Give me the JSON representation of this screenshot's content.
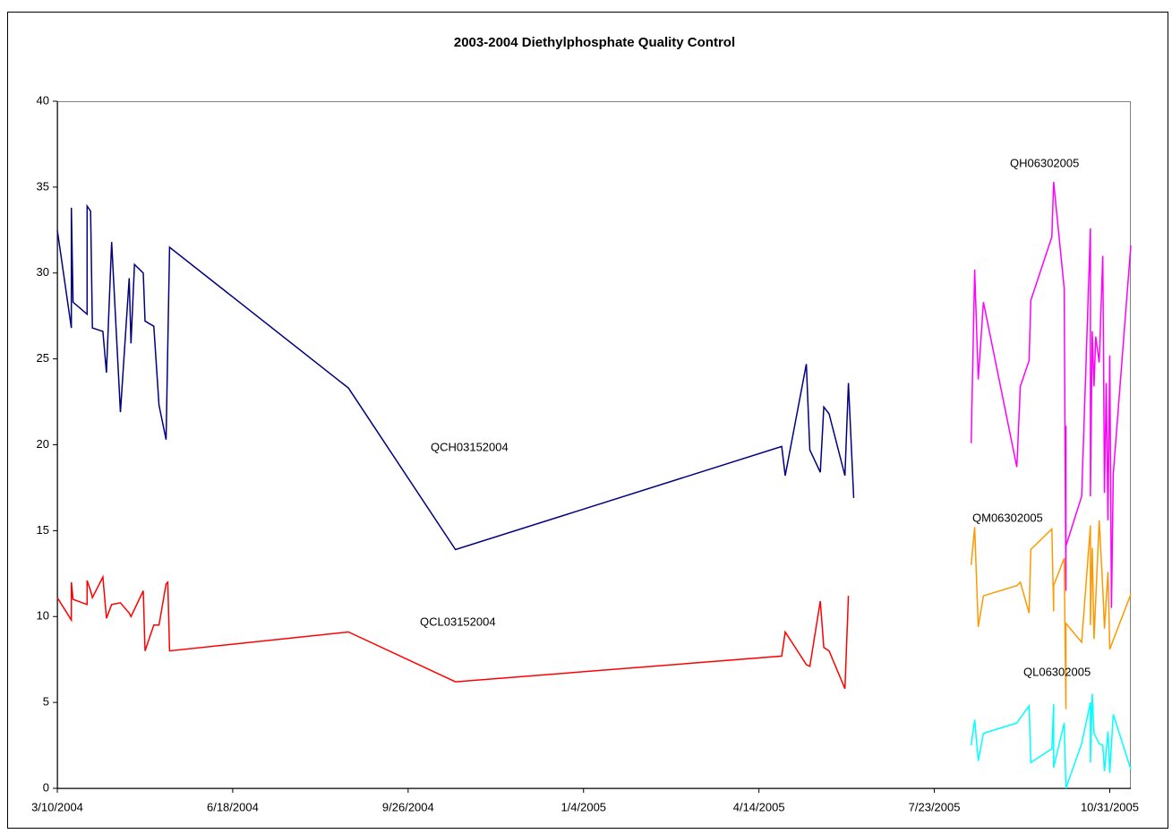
{
  "chart_data": {
    "type": "line",
    "title": "2003-2004 Diethylphosphate Quality Control",
    "xlim": [
      "2004-03-10",
      "2005-11-12"
    ],
    "xticks": [
      {
        "value": "2004-03-10",
        "label": "3/10/2004"
      },
      {
        "value": "2004-06-18",
        "label": "6/18/2004"
      },
      {
        "value": "2004-09-26",
        "label": "9/26/2004"
      },
      {
        "value": "2005-01-04",
        "label": "1/4/2005"
      },
      {
        "value": "2005-04-14",
        "label": "4/14/2005"
      },
      {
        "value": "2005-07-23",
        "label": "7/23/2005"
      },
      {
        "value": "2005-10-31",
        "label": "10/31/2005"
      }
    ],
    "ylim": [
      0,
      40
    ],
    "yticks": [
      0,
      5,
      10,
      15,
      20,
      25,
      30,
      35,
      40
    ],
    "grid": false,
    "series": [
      {
        "name": "QCH03152004",
        "color": "#000080",
        "x": [
          "2004-03-10",
          "2004-03-18",
          "2004-03-18",
          "2004-03-19",
          "2004-03-27",
          "2004-03-27",
          "2004-03-29",
          "2004-03-30",
          "2004-04-05",
          "2004-04-07",
          "2004-04-10",
          "2004-04-15",
          "2004-04-20",
          "2004-04-21",
          "2004-04-23",
          "2004-04-28",
          "2004-04-29",
          "2004-05-04",
          "2004-05-07",
          "2004-05-11",
          "2004-05-13",
          "2004-08-23",
          "2004-10-23",
          "2005-04-27",
          "2005-04-29",
          "2005-05-11",
          "2005-05-13",
          "2005-05-19",
          "2005-05-21",
          "2005-05-24",
          "2005-06-02",
          "2005-06-04",
          "2005-06-07"
        ],
        "values": [
          32.5,
          26.8,
          33.8,
          28.3,
          27.6,
          33.9,
          33.6,
          26.8,
          26.6,
          24.2,
          31.8,
          21.9,
          29.7,
          25.9,
          30.5,
          30.0,
          27.2,
          26.9,
          22.3,
          20.3,
          31.5,
          23.3,
          13.9,
          19.9,
          18.2,
          24.7,
          19.7,
          18.4,
          22.2,
          21.8,
          18.2,
          23.6,
          16.9
        ]
      },
      {
        "name": "QCL03152004",
        "color": "#ff0000",
        "x": [
          "2004-03-10",
          "2004-03-18",
          "2004-03-18",
          "2004-03-19",
          "2004-03-27",
          "2004-03-27",
          "2004-03-29",
          "2004-03-30",
          "2004-04-05",
          "2004-04-07",
          "2004-04-10",
          "2004-04-15",
          "2004-04-20",
          "2004-04-21",
          "2004-04-28",
          "2004-04-29",
          "2004-05-04",
          "2004-05-07",
          "2004-05-11",
          "2004-05-12",
          "2004-05-13",
          "2004-08-23",
          "2004-10-23",
          "2005-04-27",
          "2005-04-29",
          "2005-05-11",
          "2005-05-13",
          "2005-05-19",
          "2005-05-21",
          "2005-05-24",
          "2005-06-02",
          "2005-06-04"
        ],
        "values": [
          11.1,
          9.8,
          12.0,
          11.0,
          10.7,
          12.1,
          11.5,
          11.1,
          12.3,
          9.9,
          10.7,
          10.8,
          10.2,
          10.0,
          11.5,
          8.0,
          9.5,
          9.5,
          11.9,
          12.0,
          8.0,
          9.1,
          6.2,
          7.7,
          9.1,
          7.2,
          7.1,
          10.9,
          8.2,
          8.0,
          5.8,
          11.2
        ]
      },
      {
        "name": "QH06302005",
        "color": "#ff00ff",
        "x": [
          "2005-08-13",
          "2005-08-15",
          "2005-08-17",
          "2005-08-20",
          "2005-09-08",
          "2005-09-10",
          "2005-09-15",
          "2005-09-16",
          "2005-09-28",
          "2005-09-29",
          "2005-10-05",
          "2005-10-06",
          "2005-10-06",
          "2005-10-06",
          "2005-10-15",
          "2005-10-20",
          "2005-10-20",
          "2005-10-21",
          "2005-10-22",
          "2005-10-23",
          "2005-10-25",
          "2005-10-27",
          "2005-10-28",
          "2005-10-29",
          "2005-10-30",
          "2005-10-31",
          "2005-11-01",
          "2005-11-02",
          "2005-11-12"
        ],
        "values": [
          20.1,
          30.2,
          23.8,
          28.3,
          18.7,
          23.4,
          24.9,
          28.4,
          32.1,
          35.3,
          29.1,
          11.5,
          21.1,
          14.1,
          17.0,
          32.6,
          17.0,
          26.6,
          23.4,
          26.3,
          24.8,
          31.0,
          17.2,
          23.6,
          15.6,
          25.2,
          10.5,
          18.3,
          31.6
        ]
      },
      {
        "name": "QM06302005",
        "color": "#ff9900",
        "x": [
          "2005-08-13",
          "2005-08-15",
          "2005-08-17",
          "2005-08-20",
          "2005-09-08",
          "2005-09-10",
          "2005-09-15",
          "2005-09-16",
          "2005-09-28",
          "2005-09-29",
          "2005-09-29",
          "2005-10-05",
          "2005-10-06",
          "2005-10-06",
          "2005-10-15",
          "2005-10-20",
          "2005-10-20",
          "2005-10-21",
          "2005-10-22",
          "2005-10-25",
          "2005-10-27",
          "2005-10-28",
          "2005-10-30",
          "2005-10-31",
          "2005-11-12"
        ],
        "values": [
          13.0,
          15.2,
          9.4,
          11.2,
          11.8,
          12.0,
          10.2,
          13.9,
          15.1,
          10.3,
          11.8,
          13.4,
          4.6,
          9.6,
          8.5,
          15.3,
          9.5,
          14.0,
          8.7,
          15.6,
          11.6,
          9.3,
          12.6,
          8.1,
          11.3
        ]
      },
      {
        "name": "QL06302005",
        "color": "#00ffff",
        "x": [
          "2005-08-13",
          "2005-08-15",
          "2005-08-17",
          "2005-08-20",
          "2005-09-08",
          "2005-09-10",
          "2005-09-15",
          "2005-09-16",
          "2005-09-28",
          "2005-09-29",
          "2005-09-29",
          "2005-10-05",
          "2005-10-06",
          "2005-10-15",
          "2005-10-20",
          "2005-10-20",
          "2005-10-21",
          "2005-10-22",
          "2005-10-25",
          "2005-10-27",
          "2005-10-28",
          "2005-10-30",
          "2005-10-31",
          "2005-11-02",
          "2005-11-12"
        ],
        "values": [
          2.5,
          4.0,
          1.6,
          3.2,
          3.8,
          4.1,
          4.8,
          1.5,
          2.3,
          4.9,
          1.2,
          3.8,
          0.0,
          2.6,
          5.0,
          1.5,
          5.5,
          3.2,
          2.6,
          2.5,
          1.0,
          3.3,
          0.9,
          4.3,
          1.1
        ]
      }
    ]
  }
}
